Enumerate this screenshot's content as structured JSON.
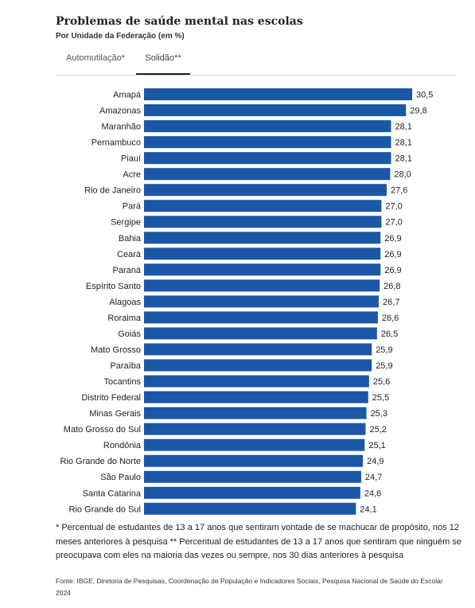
{
  "header": {
    "title": "Problemas de saúde mental nas escolas",
    "subtitle": "Por Unidade da Federação (em %)"
  },
  "tabs": [
    {
      "label": "Automutilação*",
      "active": false
    },
    {
      "label": "Solidão**",
      "active": true
    }
  ],
  "colors": {
    "bar": "#1b57a6"
  },
  "chart_data": {
    "type": "bar",
    "orientation": "horizontal",
    "categories": [
      "Amapá",
      "Amazonas",
      "Maranhão",
      "Pernambuco",
      "Piauí",
      "Acre",
      "Rio de Janeiro",
      "Pará",
      "Sergipe",
      "Bahia",
      "Ceará",
      "Paraná",
      "Espírito Santo",
      "Alagoas",
      "Roraima",
      "Goiás",
      "Mato Grosso",
      "Paraíba",
      "Tocantins",
      "Distrito Federal",
      "Minas Gerais",
      "Mato Grosso do Sul",
      "Rondônia",
      "Rio Grande do Norte",
      "São Paulo",
      "Santa Catarina",
      "Rio Grande do Sul"
    ],
    "values": [
      30.5,
      29.8,
      28.1,
      28.1,
      28.1,
      28.0,
      27.6,
      27.0,
      27.0,
      26.9,
      26.9,
      26.9,
      26.8,
      26.7,
      26.6,
      26.5,
      25.9,
      25.9,
      25.6,
      25.5,
      25.3,
      25.2,
      25.1,
      24.9,
      24.7,
      24.6,
      24.1
    ],
    "value_labels": [
      "30,5",
      "29,8",
      "28,1",
      "28,1",
      "28,1",
      "28,0",
      "27,6",
      "27,0",
      "27,0",
      "26,9",
      "26,9",
      "26,9",
      "26,8",
      "26,7",
      "26,6",
      "26,5",
      "25,9",
      "25,9",
      "25,6",
      "25,5",
      "25,3",
      "25,2",
      "25,1",
      "24,9",
      "24,7",
      "24,6",
      "24,1"
    ],
    "grid": false,
    "legend": "none"
  },
  "footnote": "* Percentual de estudantes de 13 a 17 anos que sentiram vontade de se machucar de propósito, nos 12 meses anteriores à pesquisa ** Percentual de estudantes de 13 a 17 anos que sentiram que ninguém se preocupava com eles na maioria das vezes ou sempre, nos 30 dias anteriores à pesquisa",
  "source": "Fonte: IBGE, Diretoria de Pesquisas, Coordenação de População e Indicadores Sociais, Pesquisa Nacional de Saúde do Escolar 2024"
}
